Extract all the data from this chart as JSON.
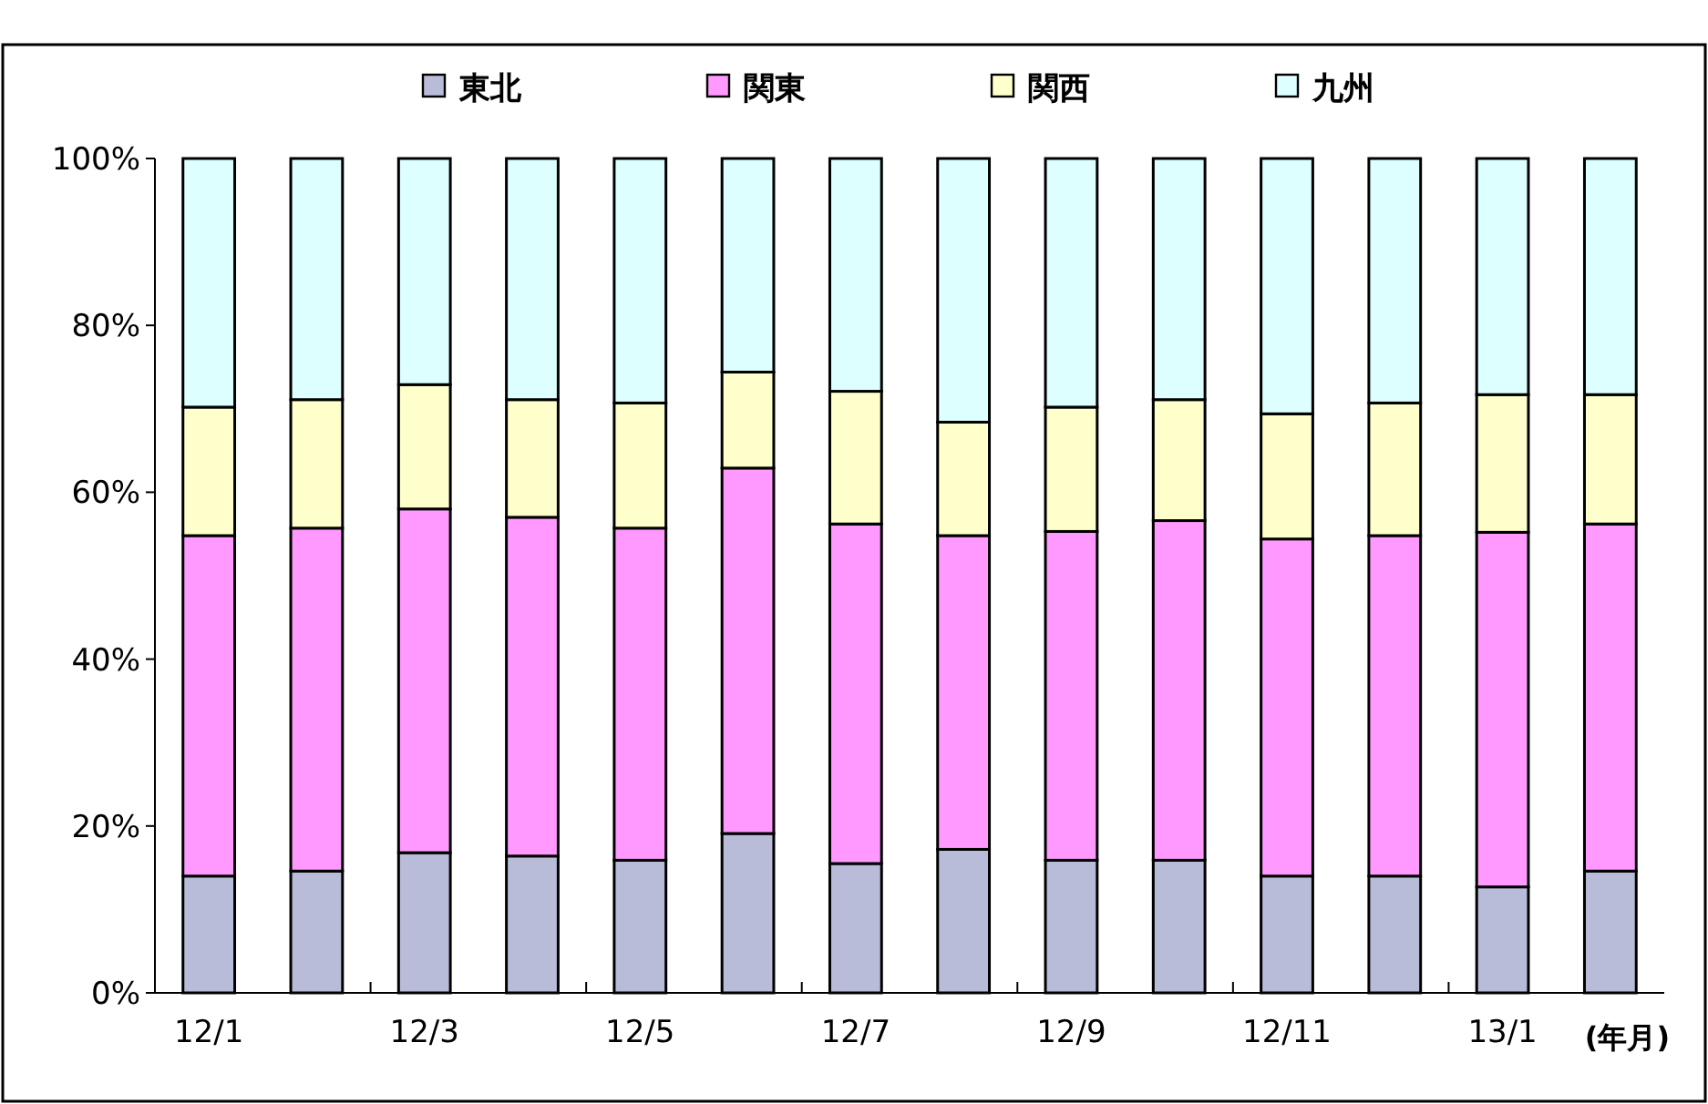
{
  "chart_data": {
    "type": "bar",
    "stacked": true,
    "legend": "top",
    "xlabel": "(年月)",
    "categories": [
      "12/1",
      null,
      "12/3",
      null,
      "12/5",
      null,
      "12/7",
      null,
      "12/9",
      null,
      "12/11",
      null,
      "13/1",
      null
    ],
    "ylim": [
      0,
      100
    ],
    "yticks": [
      {
        "value": 0,
        "label": "0%"
      },
      {
        "value": 20,
        "label": "20%"
      },
      {
        "value": 40,
        "label": "40%"
      },
      {
        "value": 60,
        "label": "60%"
      },
      {
        "value": 80,
        "label": "80%"
      },
      {
        "value": 100,
        "label": "100%"
      }
    ],
    "series": [
      {
        "name": "東北",
        "color": "#b8bcd8",
        "values": [
          14.0,
          14.6,
          16.8,
          16.4,
          15.9,
          19.1,
          15.5,
          17.2,
          15.9,
          15.9,
          14.0,
          14.0,
          12.7,
          14.6
        ]
      },
      {
        "name": "関東",
        "color": "#ff99ff",
        "values": [
          40.8,
          41.1,
          41.2,
          40.6,
          39.8,
          43.8,
          40.7,
          37.6,
          39.4,
          40.7,
          40.4,
          40.8,
          42.5,
          41.6
        ]
      },
      {
        "name": "関西",
        "color": "#ffffcc",
        "values": [
          15.4,
          15.4,
          14.9,
          14.1,
          15.0,
          11.5,
          15.9,
          13.6,
          14.9,
          14.5,
          15.0,
          15.9,
          16.5,
          15.5
        ]
      },
      {
        "name": "九州",
        "color": "#ddffff",
        "values": [
          29.8,
          28.9,
          27.1,
          28.9,
          29.3,
          25.6,
          27.9,
          31.6,
          29.8,
          28.9,
          30.6,
          29.3,
          28.3,
          28.3
        ]
      }
    ]
  }
}
